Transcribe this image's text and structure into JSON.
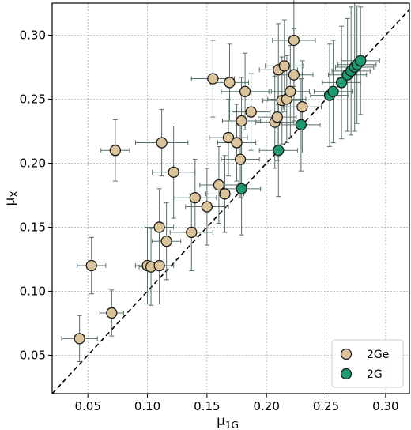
{
  "chart_data": {
    "type": "scatter",
    "title": "",
    "xlabel": "μ",
    "xlabel_sub": "1G",
    "ylabel": "μ",
    "ylabel_sub": "X",
    "xlim": [
      0.02,
      0.32
    ],
    "ylim": [
      0.02,
      0.325
    ],
    "xticks": [
      0.05,
      0.1,
      0.15,
      0.2,
      0.25,
      0.3
    ],
    "yticks": [
      0.05,
      0.1,
      0.15,
      0.2,
      0.25,
      0.3
    ],
    "xtick_labels": [
      "0.05",
      "0.10",
      "0.15",
      "0.20",
      "0.25",
      "0.30"
    ],
    "ytick_labels": [
      "0.05",
      "0.10",
      "0.15",
      "0.20",
      "0.25",
      "0.30"
    ],
    "grid": true,
    "grid_style": "dotted",
    "reference_line": {
      "type": "identity",
      "style": "dashed",
      "color": "#000000"
    },
    "legend": {
      "placement": "bottom-right"
    },
    "series": [
      {
        "name": "2Ge",
        "color": "#dcc49a",
        "edge_color": "#1a1a1a",
        "points": [
          {
            "x": 0.043,
            "y": 0.063,
            "xerr": 0.015,
            "yerr": 0.018
          },
          {
            "x": 0.053,
            "y": 0.12,
            "xerr": 0.012,
            "yerr": 0.022
          },
          {
            "x": 0.07,
            "y": 0.083,
            "xerr": 0.01,
            "yerr": 0.018
          },
          {
            "x": 0.073,
            "y": 0.21,
            "xerr": 0.012,
            "yerr": 0.024
          },
          {
            "x": 0.1,
            "y": 0.12,
            "xerr": 0.01,
            "yerr": 0.03
          },
          {
            "x": 0.103,
            "y": 0.119,
            "xerr": 0.01,
            "yerr": 0.03
          },
          {
            "x": 0.11,
            "y": 0.15,
            "xerr": 0.012,
            "yerr": 0.03
          },
          {
            "x": 0.11,
            "y": 0.12,
            "xerr": 0.012,
            "yerr": 0.03
          },
          {
            "x": 0.112,
            "y": 0.216,
            "xerr": 0.022,
            "yerr": 0.026
          },
          {
            "x": 0.116,
            "y": 0.139,
            "xerr": 0.012,
            "yerr": 0.03
          },
          {
            "x": 0.122,
            "y": 0.193,
            "xerr": 0.018,
            "yerr": 0.036
          },
          {
            "x": 0.137,
            "y": 0.146,
            "xerr": 0.018,
            "yerr": 0.03
          },
          {
            "x": 0.14,
            "y": 0.173,
            "xerr": 0.018,
            "yerr": 0.03
          },
          {
            "x": 0.15,
            "y": 0.166,
            "xerr": 0.018,
            "yerr": 0.03
          },
          {
            "x": 0.155,
            "y": 0.266,
            "xerr": 0.018,
            "yerr": 0.03
          },
          {
            "x": 0.16,
            "y": 0.183,
            "xerr": 0.016,
            "yerr": 0.03
          },
          {
            "x": 0.165,
            "y": 0.176,
            "xerr": 0.016,
            "yerr": 0.03
          },
          {
            "x": 0.168,
            "y": 0.22,
            "xerr": 0.016,
            "yerr": 0.03
          },
          {
            "x": 0.169,
            "y": 0.263,
            "xerr": 0.016,
            "yerr": 0.03
          },
          {
            "x": 0.175,
            "y": 0.216,
            "xerr": 0.016,
            "yerr": 0.03
          },
          {
            "x": 0.178,
            "y": 0.203,
            "xerr": 0.016,
            "yerr": 0.03
          },
          {
            "x": 0.179,
            "y": 0.233,
            "xerr": 0.016,
            "yerr": 0.034
          },
          {
            "x": 0.182,
            "y": 0.256,
            "xerr": 0.02,
            "yerr": 0.03
          },
          {
            "x": 0.187,
            "y": 0.24,
            "xerr": 0.016,
            "yerr": 0.03
          },
          {
            "x": 0.207,
            "y": 0.232,
            "xerr": 0.016,
            "yerr": 0.036
          },
          {
            "x": 0.209,
            "y": 0.236,
            "xerr": 0.016,
            "yerr": 0.034
          },
          {
            "x": 0.21,
            "y": 0.273,
            "xerr": 0.016,
            "yerr": 0.036
          },
          {
            "x": 0.213,
            "y": 0.249,
            "xerr": 0.016,
            "yerr": 0.034
          },
          {
            "x": 0.215,
            "y": 0.276,
            "xerr": 0.016,
            "yerr": 0.036
          },
          {
            "x": 0.217,
            "y": 0.25,
            "xerr": 0.016,
            "yerr": 0.034
          },
          {
            "x": 0.22,
            "y": 0.256,
            "xerr": 0.016,
            "yerr": 0.036
          },
          {
            "x": 0.223,
            "y": 0.269,
            "xerr": 0.016,
            "yerr": 0.036
          },
          {
            "x": 0.223,
            "y": 0.296,
            "xerr": 0.018,
            "yerr": 0.036
          },
          {
            "x": 0.23,
            "y": 0.244,
            "xerr": 0.016,
            "yerr": 0.036
          }
        ]
      },
      {
        "name": "2G",
        "color": "#1e9a72",
        "edge_color": "#1a1a1a",
        "points": [
          {
            "x": 0.179,
            "y": 0.18,
            "xerr": 0.016,
            "yerr": 0.036
          },
          {
            "x": 0.21,
            "y": 0.21,
            "xerr": 0.016,
            "yerr": 0.036
          },
          {
            "x": 0.229,
            "y": 0.23,
            "xerr": 0.016,
            "yerr": 0.036
          },
          {
            "x": 0.253,
            "y": 0.253,
            "xerr": 0.016,
            "yerr": 0.04
          },
          {
            "x": 0.256,
            "y": 0.256,
            "xerr": 0.016,
            "yerr": 0.04
          },
          {
            "x": 0.263,
            "y": 0.263,
            "xerr": 0.016,
            "yerr": 0.044
          },
          {
            "x": 0.268,
            "y": 0.269,
            "xerr": 0.016,
            "yerr": 0.044
          },
          {
            "x": 0.271,
            "y": 0.272,
            "xerr": 0.016,
            "yerr": 0.05
          },
          {
            "x": 0.274,
            "y": 0.275,
            "xerr": 0.016,
            "yerr": 0.05
          },
          {
            "x": 0.276,
            "y": 0.277,
            "xerr": 0.016,
            "yerr": 0.046
          },
          {
            "x": 0.279,
            "y": 0.28,
            "xerr": 0.016,
            "yerr": 0.042
          }
        ]
      }
    ]
  }
}
